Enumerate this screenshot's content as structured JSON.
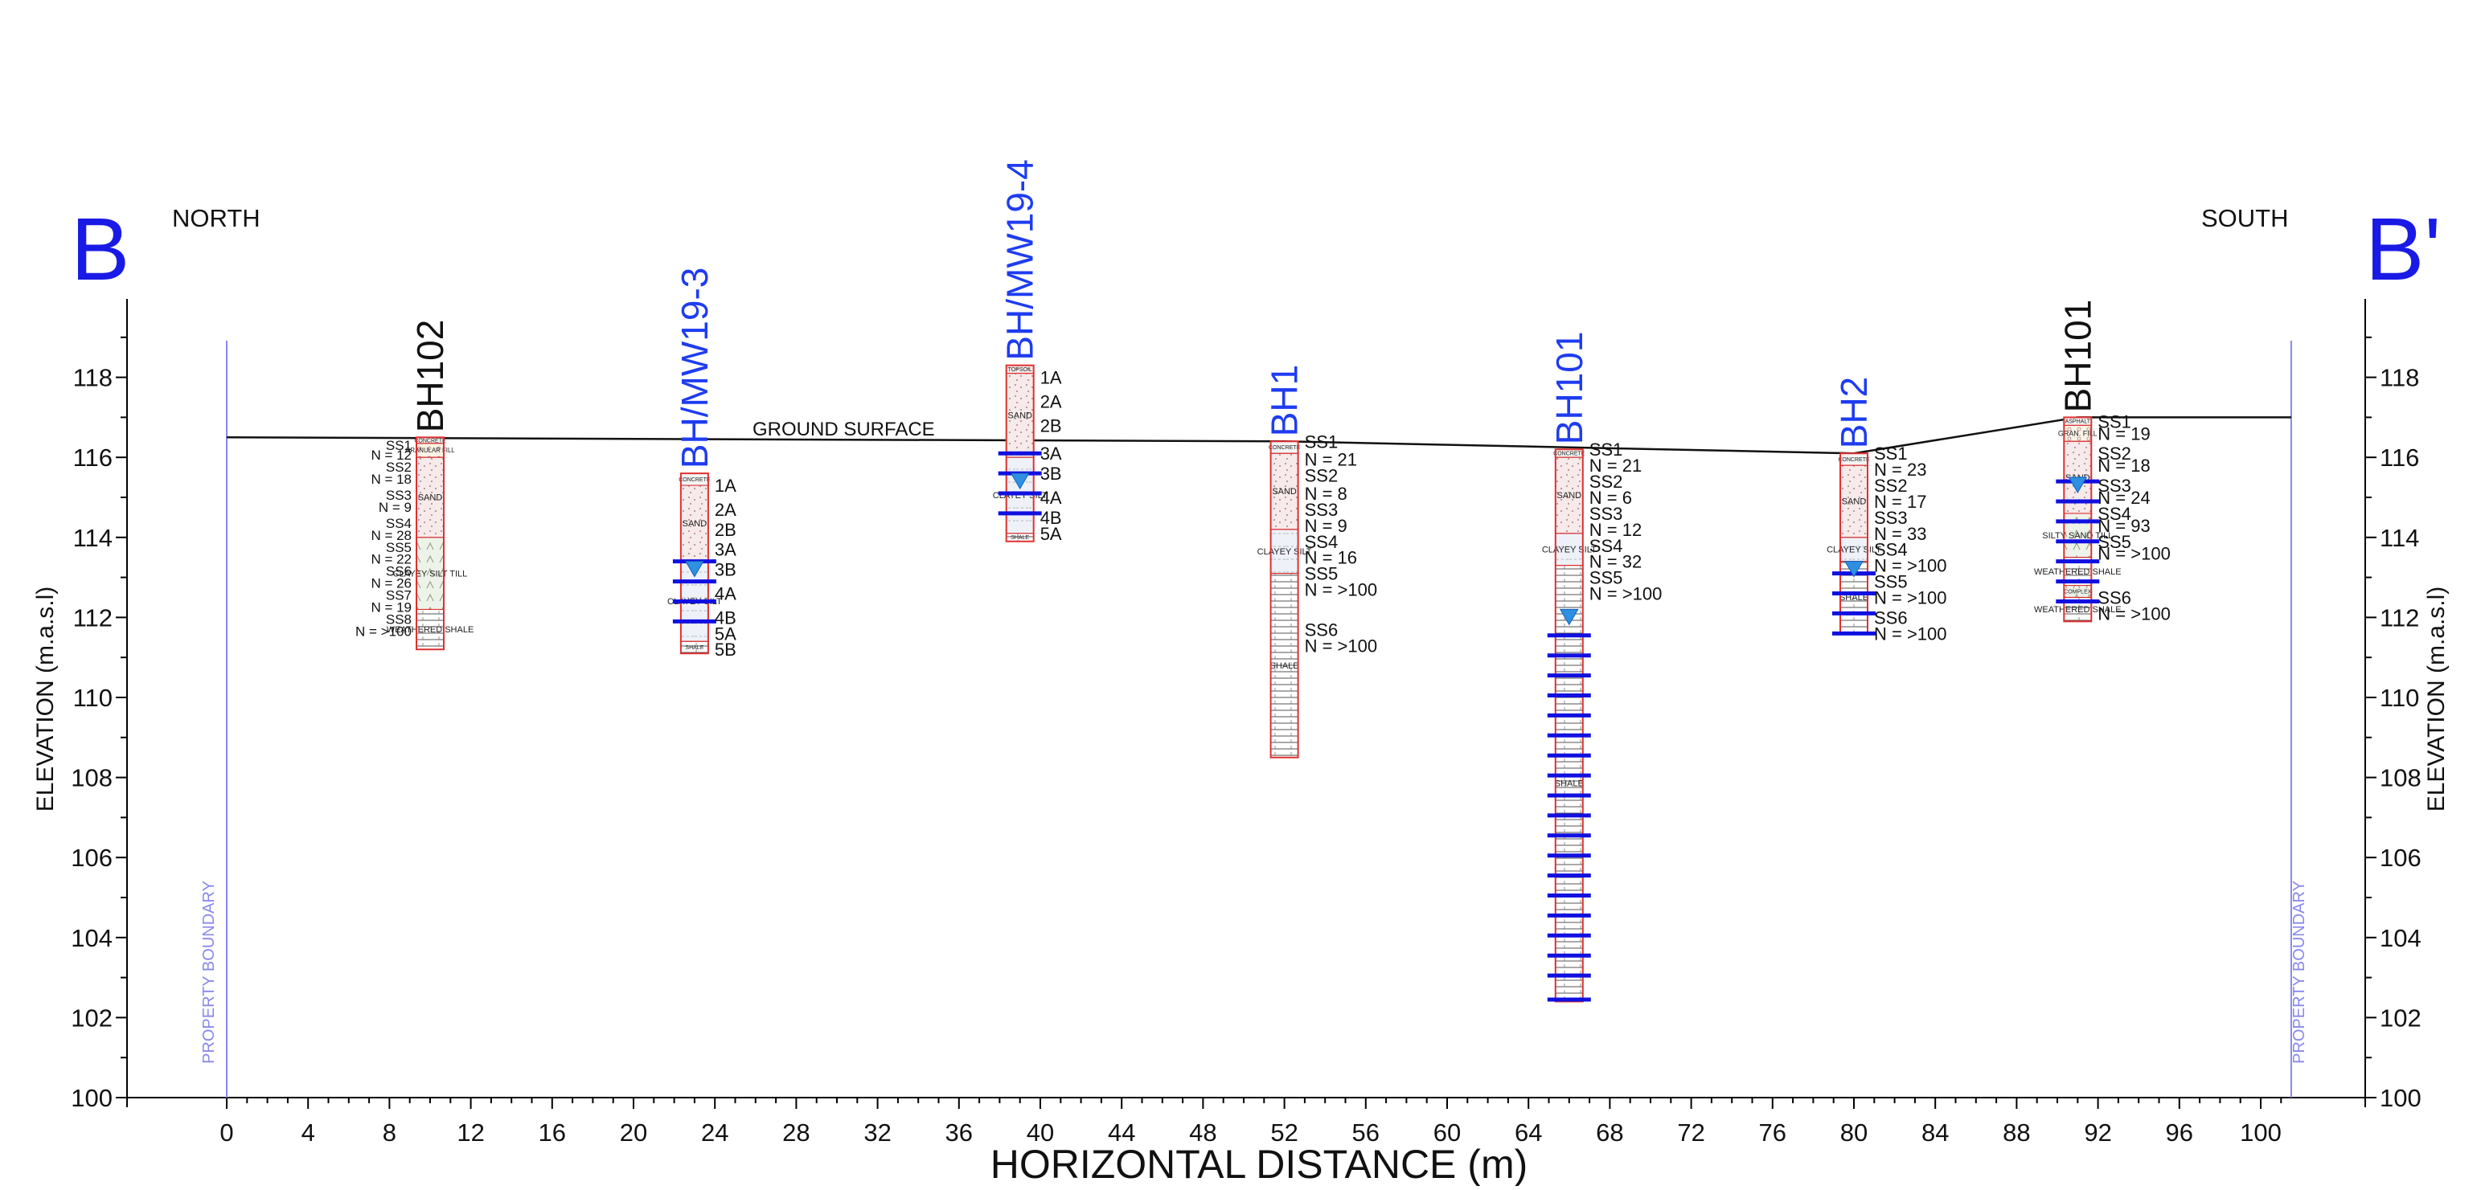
{
  "section": {
    "left_marker": "B",
    "right_marker": "B'",
    "left_direction": "NORTH",
    "right_direction": "SOUTH",
    "ground_label": "GROUND SURFACE",
    "boundary_label": "PROPERTY BOUNDARY",
    "x_axis_title": "HORIZONTAL DISTANCE (m)",
    "y_axis_title": "ELEVATION (m.a.s.l)",
    "x_ticks": [
      "0",
      "4",
      "8",
      "12",
      "16",
      "20",
      "24",
      "28",
      "32",
      "36",
      "40",
      "44",
      "48",
      "52",
      "56",
      "60",
      "64",
      "68",
      "72",
      "76",
      "80",
      "84",
      "88",
      "92",
      "96",
      "100"
    ],
    "y_ticks": [
      "100",
      "102",
      "104",
      "106",
      "108",
      "110",
      "112",
      "114",
      "116",
      "118"
    ],
    "colors": {
      "marker_blue": "#1a1ae6",
      "name_blue": "#1e3cf0",
      "name_black": "#111111",
      "boundary": "#8888ee",
      "log_outline": "#e03030",
      "screen": "#1010e0",
      "water": "#2f8fe0"
    }
  },
  "chart_data": {
    "type": "cross-section",
    "x_unit": "m",
    "y_unit": "m.a.s.l",
    "x_range": [
      0,
      101.5
    ],
    "y_range": [
      100,
      119
    ],
    "property_boundaries_x": [
      0,
      101.5
    ],
    "ground_surface": [
      {
        "x": 0,
        "y": 116.5
      },
      {
        "x": 52,
        "y": 116.4
      },
      {
        "x": 80,
        "y": 116.1
      },
      {
        "x": 91,
        "y": 117.0
      },
      {
        "x": 101.5,
        "y": 117.0
      }
    ],
    "boreholes": [
      {
        "name": "BH102",
        "name_style": "black",
        "x": 10,
        "top": 116.5,
        "bottom": 111.2,
        "layers": [
          {
            "label": "CONCRETE",
            "top": 116.5,
            "bottom": 116.35
          },
          {
            "label": "GRANULAR FILL",
            "top": 116.35,
            "bottom": 116.0
          },
          {
            "label": "SAND",
            "top": 116.0,
            "bottom": 114.0
          },
          {
            "label": "CLAYEY SILT TILL",
            "top": 114.0,
            "bottom": 112.2
          },
          {
            "label": "WEATHERED SHALE",
            "top": 112.2,
            "bottom": 111.2
          }
        ],
        "labels_side": "left",
        "samples": [
          {
            "text": "SS1",
            "y": 116.35
          },
          {
            "text": "N = 12",
            "y": 116.1
          },
          {
            "text": "SS2",
            "y": 115.8
          },
          {
            "text": "N = 18",
            "y": 115.5
          },
          {
            "text": "SS3",
            "y": 115.1
          },
          {
            "text": "N = 9",
            "y": 114.8
          },
          {
            "text": "SS4",
            "y": 114.4
          },
          {
            "text": "N = 28",
            "y": 114.1
          },
          {
            "text": "SS5",
            "y": 113.8
          },
          {
            "text": "N = 22",
            "y": 113.5
          },
          {
            "text": "SS6",
            "y": 113.2
          },
          {
            "text": "N = 26",
            "y": 112.9
          },
          {
            "text": "SS7",
            "y": 112.6
          },
          {
            "text": "N = 19",
            "y": 112.3
          },
          {
            "text": "SS8",
            "y": 112.0
          },
          {
            "text": "N = >100",
            "y": 111.7
          }
        ],
        "water_level": null,
        "screens": []
      },
      {
        "name": "BH/MW19-3",
        "name_style": "blue",
        "x": 23,
        "top": 115.6,
        "bottom": 111.1,
        "layers": [
          {
            "label": "CONCRETE",
            "top": 115.6,
            "bottom": 115.3
          },
          {
            "label": "SAND",
            "top": 115.3,
            "bottom": 113.4
          },
          {
            "label": "CLAYEY SILT",
            "top": 113.4,
            "bottom": 111.4
          },
          {
            "label": "SHALE",
            "top": 111.4,
            "bottom": 111.1
          }
        ],
        "labels_side": "right",
        "samples": [
          {
            "text": "1A",
            "y": 115.3
          },
          {
            "text": "2A",
            "y": 114.7
          },
          {
            "text": "2B",
            "y": 114.2
          },
          {
            "text": "3A",
            "y": 113.7
          },
          {
            "text": "3B",
            "y": 113.2
          },
          {
            "text": "4A",
            "y": 112.6
          },
          {
            "text": "4B",
            "y": 112.0
          },
          {
            "text": "5A",
            "y": 111.6
          },
          {
            "text": "5B",
            "y": 111.2
          }
        ],
        "water_level": 113.2,
        "screens": [
          113.4,
          112.9,
          112.4,
          111.9
        ]
      },
      {
        "name": "BH/MW19-4",
        "name_style": "blue",
        "x": 39,
        "top": 118.3,
        "bottom": 113.9,
        "layers": [
          {
            "label": "TOPSOIL",
            "top": 118.3,
            "bottom": 118.1
          },
          {
            "label": "SAND",
            "top": 118.1,
            "bottom": 116.0
          },
          {
            "label": "CLAYEY SILT",
            "top": 116.0,
            "bottom": 114.1
          },
          {
            "label": "SHALE",
            "top": 114.1,
            "bottom": 113.9
          }
        ],
        "labels_side": "right",
        "samples": [
          {
            "text": "1A",
            "y": 118.0
          },
          {
            "text": "2A",
            "y": 117.4
          },
          {
            "text": "2B",
            "y": 116.8
          },
          {
            "text": "3A",
            "y": 116.1
          },
          {
            "text": "3B",
            "y": 115.6
          },
          {
            "text": "4A",
            "y": 115.0
          },
          {
            "text": "4B",
            "y": 114.5
          },
          {
            "text": "5A",
            "y": 114.1
          }
        ],
        "water_level": 115.4,
        "screens": [
          116.1,
          115.6,
          115.1,
          114.6
        ]
      },
      {
        "name": "BH1",
        "name_style": "blue",
        "x": 52,
        "top": 116.4,
        "bottom": 108.5,
        "layers": [
          {
            "label": "CONCRETE",
            "top": 116.4,
            "bottom": 116.1
          },
          {
            "label": "SAND",
            "top": 116.1,
            "bottom": 114.2
          },
          {
            "label": "CLAYEY SILT",
            "top": 114.2,
            "bottom": 113.1
          },
          {
            "label": "SHALE",
            "top": 113.1,
            "bottom": 108.5
          }
        ],
        "labels_side": "right",
        "samples": [
          {
            "text": "SS1",
            "y": 116.4
          },
          {
            "text": "N = 21",
            "y": 115.95
          },
          {
            "text": "SS2",
            "y": 115.55
          },
          {
            "text": "N = 8",
            "y": 115.1
          },
          {
            "text": "SS3",
            "y": 114.7
          },
          {
            "text": "N = 9",
            "y": 114.3
          },
          {
            "text": "SS4",
            "y": 113.9
          },
          {
            "text": "N = 16",
            "y": 113.5
          },
          {
            "text": "SS5",
            "y": 113.1
          },
          {
            "text": "N = >100",
            "y": 112.7
          },
          {
            "text": "SS6",
            "y": 111.7
          },
          {
            "text": "N = >100",
            "y": 111.3
          }
        ],
        "water_level": null,
        "screens": []
      },
      {
        "name": "BH101",
        "name_style": "blue",
        "x": 66,
        "top": 116.2,
        "bottom": 102.4,
        "layers": [
          {
            "label": "CONCRETE",
            "top": 116.2,
            "bottom": 116.0
          },
          {
            "label": "SAND",
            "top": 116.0,
            "bottom": 114.1
          },
          {
            "label": "CLAYEY SILT",
            "top": 114.1,
            "bottom": 113.3
          },
          {
            "label": "SHALE",
            "top": 113.3,
            "bottom": 102.4
          }
        ],
        "labels_side": "right",
        "samples": [
          {
            "text": "SS1",
            "y": 116.2
          },
          {
            "text": "N = 21",
            "y": 115.8
          },
          {
            "text": "SS2",
            "y": 115.4
          },
          {
            "text": "N = 6",
            "y": 115.0
          },
          {
            "text": "SS3",
            "y": 114.6
          },
          {
            "text": "N = 12",
            "y": 114.2
          },
          {
            "text": "SS4",
            "y": 113.8
          },
          {
            "text": "N = 32",
            "y": 113.4
          },
          {
            "text": "SS5",
            "y": 113.0
          },
          {
            "text": "N = >100",
            "y": 112.6
          }
        ],
        "water_level": 112.0,
        "screens": [
          111.55,
          111.05,
          110.55,
          110.05,
          109.55,
          109.05,
          108.55,
          108.05,
          107.55,
          107.05,
          106.55,
          106.05,
          105.55,
          105.05,
          104.55,
          104.05,
          103.55,
          103.05,
          102.45
        ]
      },
      {
        "name": "BH2",
        "name_style": "blue",
        "x": 80,
        "top": 116.1,
        "bottom": 111.6,
        "layers": [
          {
            "label": "CONCRETE",
            "top": 116.1,
            "bottom": 115.8
          },
          {
            "label": "SAND",
            "top": 115.8,
            "bottom": 114.0
          },
          {
            "label": "CLAYEY SILT",
            "top": 114.0,
            "bottom": 113.4
          },
          {
            "label": "SHALE",
            "top": 113.4,
            "bottom": 111.6
          }
        ],
        "labels_side": "right",
        "samples": [
          {
            "text": "SS1",
            "y": 116.1
          },
          {
            "text": "N = 23",
            "y": 115.7
          },
          {
            "text": "SS2",
            "y": 115.3
          },
          {
            "text": "N = 17",
            "y": 114.9
          },
          {
            "text": "SS3",
            "y": 114.5
          },
          {
            "text": "N = 33",
            "y": 114.1
          },
          {
            "text": "SS4",
            "y": 113.7
          },
          {
            "text": "N = >100",
            "y": 113.3
          },
          {
            "text": "SS5",
            "y": 112.9
          },
          {
            "text": "N = >100",
            "y": 112.5
          },
          {
            "text": "SS6",
            "y": 112.0
          },
          {
            "text": "N = >100",
            "y": 111.6
          }
        ],
        "water_level": 113.2,
        "screens": [
          113.1,
          112.6,
          112.1,
          111.6
        ]
      },
      {
        "name": "BH101",
        "name_style": "black",
        "x": 91,
        "top": 117.0,
        "bottom": 111.9,
        "layers": [
          {
            "label": "ASPHALT",
            "top": 117.0,
            "bottom": 116.8
          },
          {
            "label": "GRAN. FILL",
            "top": 116.8,
            "bottom": 116.4
          },
          {
            "label": "SAND",
            "top": 116.4,
            "bottom": 114.6
          },
          {
            "label": "SILTY SAND TILL",
            "top": 114.6,
            "bottom": 113.5
          },
          {
            "label": "WEATHERED SHALE",
            "top": 113.5,
            "bottom": 112.8
          },
          {
            "label": "COMPLEX",
            "top": 112.8,
            "bottom": 112.5
          },
          {
            "label": "WEATHERED SHALE",
            "top": 112.5,
            "bottom": 111.9
          }
        ],
        "labels_side": "right",
        "samples": [
          {
            "text": "SS1",
            "y": 116.9
          },
          {
            "text": "N = 19",
            "y": 116.6
          },
          {
            "text": "SS2",
            "y": 116.1
          },
          {
            "text": "N = 18",
            "y": 115.8
          },
          {
            "text": "SS3",
            "y": 115.3
          },
          {
            "text": "N = 24",
            "y": 115.0
          },
          {
            "text": "SS4",
            "y": 114.6
          },
          {
            "text": "N = 93",
            "y": 114.3
          },
          {
            "text": "SS5",
            "y": 113.9
          },
          {
            "text": "N = >100",
            "y": 113.6
          },
          {
            "text": "SS6",
            "y": 112.5
          },
          {
            "text": "N = >100",
            "y": 112.1
          }
        ],
        "water_level": 115.3,
        "screens": [
          115.4,
          114.9,
          114.4,
          113.9,
          113.4,
          112.9,
          112.4
        ]
      }
    ]
  }
}
